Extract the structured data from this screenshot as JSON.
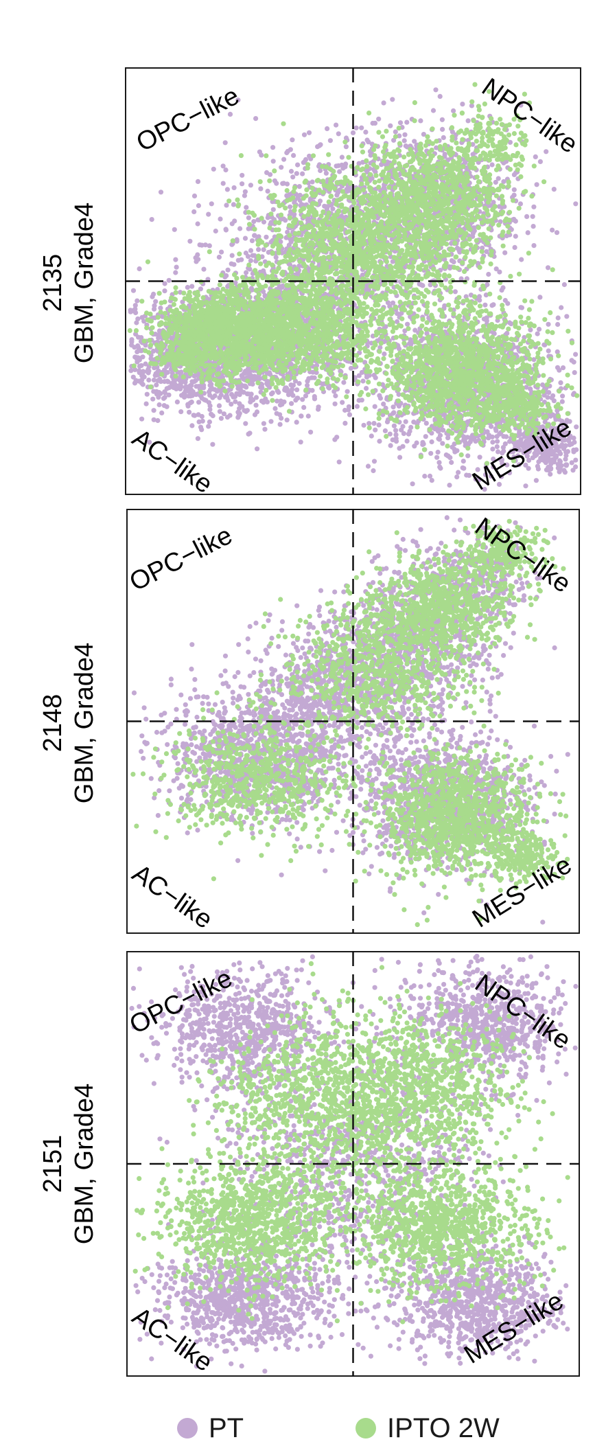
{
  "chart_data": [
    {
      "type": "scatter",
      "panel_id": "2135",
      "panel_subtitle": "GBM, Grade4",
      "quadrant_labels": {
        "top_left": "OPC−like",
        "top_right": "NPC−like",
        "bottom_left": "AC−like",
        "bottom_right": "MES−like"
      },
      "grid": false,
      "reference_lines": {
        "vertical_x": 0,
        "horizontal_y": 0,
        "style": "dashed"
      },
      "xlim": [
        -1,
        1
      ],
      "ylim": [
        -1,
        1
      ],
      "series": [
        {
          "name": "PT",
          "color": "#c3a9d3",
          "clusters": [
            {
              "cx": -0.7,
              "cy": -0.35,
              "sx": 0.16,
              "sy": 0.14,
              "n": 900
            },
            {
              "cx": -0.35,
              "cy": -0.28,
              "sx": 0.2,
              "sy": 0.16,
              "n": 1100
            },
            {
              "cx": -0.05,
              "cy": 0.22,
              "sx": 0.28,
              "sy": 0.22,
              "n": 1100
            },
            {
              "cx": 0.4,
              "cy": 0.4,
              "sx": 0.18,
              "sy": 0.17,
              "n": 700
            },
            {
              "cx": 0.5,
              "cy": -0.5,
              "sx": 0.22,
              "sy": 0.18,
              "n": 1300
            },
            {
              "cx": 0.85,
              "cy": -0.78,
              "sx": 0.08,
              "sy": 0.06,
              "n": 280
            }
          ]
        },
        {
          "name": "IPTO 2W",
          "color": "#a8db8c",
          "clusters": [
            {
              "cx": -0.62,
              "cy": -0.26,
              "sx": 0.14,
              "sy": 0.1,
              "n": 1100
            },
            {
              "cx": -0.25,
              "cy": -0.22,
              "sx": 0.18,
              "sy": 0.12,
              "n": 1200
            },
            {
              "cx": 0.05,
              "cy": 0.18,
              "sx": 0.24,
              "sy": 0.18,
              "n": 1300
            },
            {
              "cx": 0.38,
              "cy": 0.42,
              "sx": 0.17,
              "sy": 0.14,
              "n": 800
            },
            {
              "cx": 0.62,
              "cy": 0.68,
              "sx": 0.07,
              "sy": 0.07,
              "n": 120
            },
            {
              "cx": 0.48,
              "cy": -0.42,
              "sx": 0.18,
              "sy": 0.14,
              "n": 1300
            },
            {
              "cx": 0.72,
              "cy": -0.6,
              "sx": 0.08,
              "sy": 0.06,
              "n": 250
            }
          ]
        }
      ]
    },
    {
      "type": "scatter",
      "panel_id": "2148",
      "panel_subtitle": "GBM, Grade4",
      "quadrant_labels": {
        "top_left": "OPC−like",
        "top_right": "NPC−like",
        "bottom_left": "AC−like",
        "bottom_right": "MES−like"
      },
      "grid": false,
      "reference_lines": {
        "vertical_x": 0,
        "horizontal_y": 0,
        "style": "dashed"
      },
      "xlim": [
        -1,
        1
      ],
      "ylim": [
        -1,
        1
      ],
      "series": [
        {
          "name": "PT",
          "color": "#c3a9d3",
          "clusters": [
            {
              "cx": -0.4,
              "cy": -0.15,
              "sx": 0.22,
              "sy": 0.16,
              "n": 1100
            },
            {
              "cx": 0.0,
              "cy": 0.18,
              "sx": 0.22,
              "sy": 0.16,
              "n": 800
            },
            {
              "cx": 0.3,
              "cy": 0.45,
              "sx": 0.17,
              "sy": 0.14,
              "n": 600
            },
            {
              "cx": 0.55,
              "cy": 0.7,
              "sx": 0.12,
              "sy": 0.1,
              "n": 300
            },
            {
              "cx": 0.4,
              "cy": -0.38,
              "sx": 0.2,
              "sy": 0.15,
              "n": 1000
            }
          ]
        },
        {
          "name": "IPTO 2W",
          "color": "#a8db8c",
          "clusters": [
            {
              "cx": -0.45,
              "cy": -0.28,
              "sx": 0.2,
              "sy": 0.14,
              "n": 650
            },
            {
              "cx": 0.1,
              "cy": 0.25,
              "sx": 0.2,
              "sy": 0.16,
              "n": 700
            },
            {
              "cx": 0.4,
              "cy": 0.55,
              "sx": 0.15,
              "sy": 0.12,
              "n": 700
            },
            {
              "cx": 0.68,
              "cy": 0.8,
              "sx": 0.09,
              "sy": 0.07,
              "n": 250
            },
            {
              "cx": 0.45,
              "cy": -0.45,
              "sx": 0.18,
              "sy": 0.14,
              "n": 1100
            },
            {
              "cx": 0.75,
              "cy": -0.65,
              "sx": 0.08,
              "sy": 0.06,
              "n": 200
            }
          ]
        }
      ]
    },
    {
      "type": "scatter",
      "panel_id": "2151",
      "panel_subtitle": "GBM, Grade4",
      "quadrant_labels": {
        "top_left": "OPC−like",
        "top_right": "NPC−like",
        "bottom_left": "AC−like",
        "bottom_right": "MES−like"
      },
      "grid": false,
      "reference_lines": {
        "vertical_x": 0,
        "horizontal_y": 0,
        "style": "dashed"
      },
      "xlim": [
        -1,
        1
      ],
      "ylim": [
        -1,
        1
      ],
      "series": [
        {
          "name": "PT",
          "color": "#c3a9d3",
          "clusters": [
            {
              "cx": -0.5,
              "cy": 0.65,
              "sx": 0.18,
              "sy": 0.14,
              "n": 700
            },
            {
              "cx": 0.6,
              "cy": 0.68,
              "sx": 0.18,
              "sy": 0.14,
              "n": 700
            },
            {
              "cx": -0.5,
              "cy": -0.65,
              "sx": 0.2,
              "sy": 0.12,
              "n": 800
            },
            {
              "cx": 0.55,
              "cy": -0.65,
              "sx": 0.2,
              "sy": 0.12,
              "n": 800
            },
            {
              "cx": 0.0,
              "cy": 0.0,
              "sx": 0.3,
              "sy": 0.28,
              "n": 900
            }
          ]
        },
        {
          "name": "IPTO 2W",
          "color": "#a8db8c",
          "clusters": [
            {
              "cx": -0.45,
              "cy": -0.28,
              "sx": 0.2,
              "sy": 0.15,
              "n": 1000
            },
            {
              "cx": 0.4,
              "cy": -0.3,
              "sx": 0.2,
              "sy": 0.15,
              "n": 1000
            },
            {
              "cx": 0.05,
              "cy": 0.3,
              "sx": 0.22,
              "sy": 0.2,
              "n": 900
            },
            {
              "cx": 0.4,
              "cy": 0.4,
              "sx": 0.18,
              "sy": 0.16,
              "n": 500
            },
            {
              "cx": -0.35,
              "cy": 0.35,
              "sx": 0.16,
              "sy": 0.16,
              "n": 300
            }
          ]
        }
      ]
    }
  ],
  "legend": {
    "placement": "bottom",
    "items": [
      {
        "label": "PT",
        "color": "#c3a9d3"
      },
      {
        "label": "IPTO 2W",
        "color": "#a8db8c"
      }
    ]
  }
}
